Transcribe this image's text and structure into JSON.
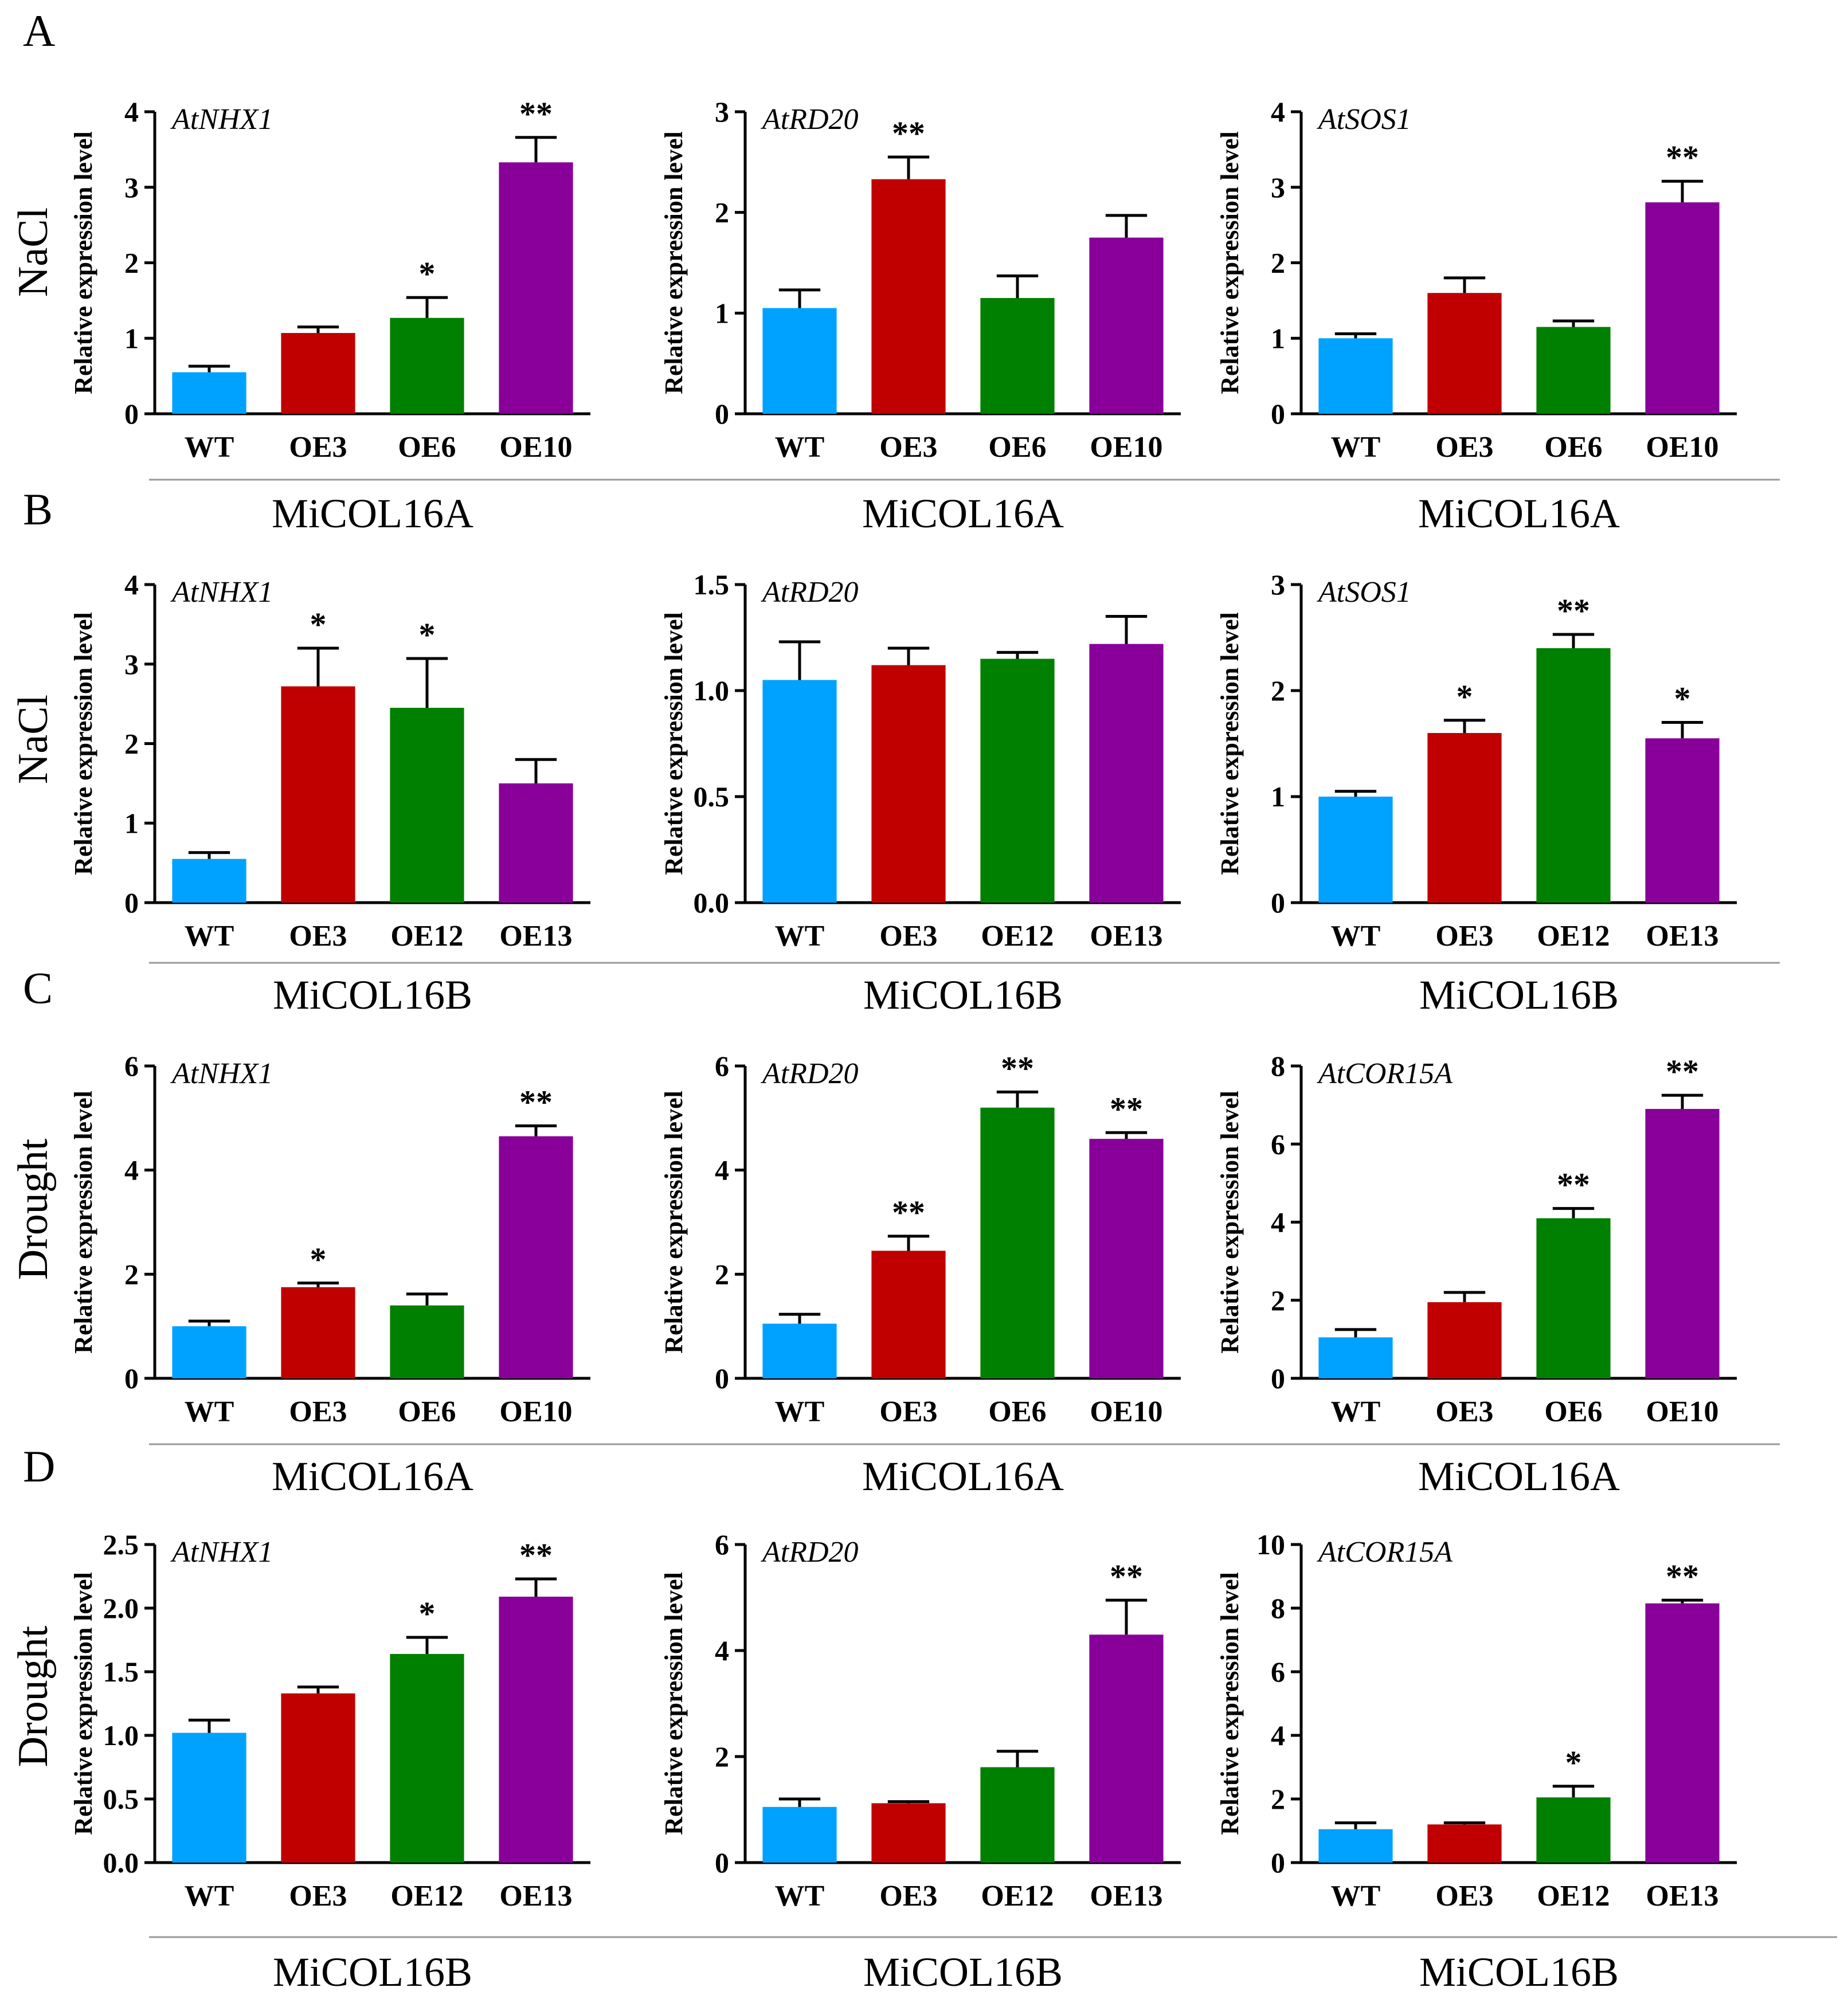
{
  "colors": {
    "WT": "#00A2FF",
    "OE3": "#C00000",
    "OE6": "#008000",
    "OE12": "#008000",
    "OE10": "#880099",
    "OE13": "#880099"
  },
  "ylabel": "Relative expression level",
  "rows": [
    {
      "label": "A",
      "condition": "NaCl"
    },
    {
      "label": "B",
      "condition": "NaCl"
    },
    {
      "label": "C",
      "condition": "Drought"
    },
    {
      "label": "D",
      "condition": "Drought"
    }
  ],
  "chart_data": [
    {
      "type": "bar",
      "gene": "AtNHX1",
      "group": "MiCOL16A",
      "categories": [
        "WT",
        "OE3",
        "OE6",
        "OE10"
      ],
      "values": [
        0.55,
        1.07,
        1.27,
        3.33
      ],
      "errors": [
        0.08,
        0.08,
        0.27,
        0.33
      ],
      "sig": [
        "",
        "",
        "*",
        "**"
      ],
      "ylim": [
        0,
        4
      ],
      "ticks": [
        "0",
        "1",
        "2",
        "3",
        "4"
      ]
    },
    {
      "type": "bar",
      "gene": "AtRD20",
      "group": "MiCOL16A",
      "categories": [
        "WT",
        "OE3",
        "OE6",
        "OE10"
      ],
      "values": [
        1.05,
        2.33,
        1.15,
        1.75
      ],
      "errors": [
        0.18,
        0.22,
        0.22,
        0.22
      ],
      "sig": [
        "",
        "**",
        "",
        ""
      ],
      "ylim": [
        0,
        3
      ],
      "ticks": [
        "0",
        "1",
        "2",
        "3"
      ]
    },
    {
      "type": "bar",
      "gene": "AtSOS1",
      "group": "MiCOL16A",
      "categories": [
        "WT",
        "OE3",
        "OE6",
        "OE10"
      ],
      "values": [
        1.0,
        1.6,
        1.15,
        2.8
      ],
      "errors": [
        0.06,
        0.2,
        0.08,
        0.28
      ],
      "sig": [
        "",
        "",
        "",
        "**"
      ],
      "ylim": [
        0,
        4
      ],
      "ticks": [
        "0",
        "1",
        "2",
        "3",
        "4"
      ]
    },
    {
      "type": "bar",
      "gene": "AtNHX1",
      "group": "MiCOL16B",
      "categories": [
        "WT",
        "OE3",
        "OE12",
        "OE13"
      ],
      "values": [
        0.55,
        2.72,
        2.45,
        1.5
      ],
      "errors": [
        0.08,
        0.48,
        0.62,
        0.3
      ],
      "sig": [
        "",
        "*",
        "*",
        ""
      ],
      "ylim": [
        0,
        4
      ],
      "ticks": [
        "0",
        "1",
        "2",
        "3",
        "4"
      ]
    },
    {
      "type": "bar",
      "gene": "AtRD20",
      "group": "MiCOL16B",
      "categories": [
        "WT",
        "OE3",
        "OE12",
        "OE13"
      ],
      "values": [
        1.05,
        1.12,
        1.15,
        1.22
      ],
      "errors": [
        0.18,
        0.08,
        0.03,
        0.13
      ],
      "sig": [
        "",
        "",
        "",
        ""
      ],
      "ylim": [
        0,
        1.5
      ],
      "ticks": [
        "0.0",
        "0.5",
        "1.0",
        "1.5"
      ]
    },
    {
      "type": "bar",
      "gene": "AtSOS1",
      "group": "MiCOL16B",
      "categories": [
        "WT",
        "OE3",
        "OE12",
        "OE13"
      ],
      "values": [
        1.0,
        1.6,
        2.4,
        1.55
      ],
      "errors": [
        0.05,
        0.12,
        0.13,
        0.15
      ],
      "sig": [
        "",
        "*",
        "**",
        "*"
      ],
      "ylim": [
        0,
        3
      ],
      "ticks": [
        "0",
        "1",
        "2",
        "3"
      ]
    },
    {
      "type": "bar",
      "gene": "AtNHX1",
      "group": "MiCOL16A",
      "categories": [
        "WT",
        "OE3",
        "OE6",
        "OE10"
      ],
      "values": [
        1.0,
        1.75,
        1.4,
        4.65
      ],
      "errors": [
        0.1,
        0.08,
        0.22,
        0.2
      ],
      "sig": [
        "",
        "*",
        "",
        "**"
      ],
      "ylim": [
        0,
        6
      ],
      "ticks": [
        "0",
        "2",
        "4",
        "6"
      ]
    },
    {
      "type": "bar",
      "gene": "AtRD20",
      "group": "MiCOL16A",
      "categories": [
        "WT",
        "OE3",
        "OE6",
        "OE10"
      ],
      "values": [
        1.05,
        2.45,
        5.2,
        4.6
      ],
      "errors": [
        0.18,
        0.28,
        0.3,
        0.12
      ],
      "sig": [
        "",
        "**",
        "**",
        "**"
      ],
      "ylim": [
        0,
        6
      ],
      "ticks": [
        "0",
        "2",
        "4",
        "6"
      ]
    },
    {
      "type": "bar",
      "gene": "AtCOR15A",
      "group": "MiCOL16A",
      "categories": [
        "WT",
        "OE3",
        "OE6",
        "OE10"
      ],
      "values": [
        1.05,
        1.95,
        4.1,
        6.9
      ],
      "errors": [
        0.2,
        0.25,
        0.25,
        0.35
      ],
      "sig": [
        "",
        "",
        "**",
        "**"
      ],
      "ylim": [
        0,
        8
      ],
      "ticks": [
        "0",
        "2",
        "4",
        "6",
        "8"
      ]
    },
    {
      "type": "bar",
      "gene": "AtNHX1",
      "group": "MiCOL16B",
      "categories": [
        "WT",
        "OE3",
        "OE12",
        "OE13"
      ],
      "values": [
        1.02,
        1.33,
        1.64,
        2.09
      ],
      "errors": [
        0.1,
        0.05,
        0.13,
        0.14
      ],
      "sig": [
        "",
        "",
        "*",
        "**"
      ],
      "ylim": [
        0,
        2.5
      ],
      "ticks": [
        "0.0",
        "0.5",
        "1.0",
        "1.5",
        "2.0",
        "2.5"
      ]
    },
    {
      "type": "bar",
      "gene": "AtRD20",
      "group": "MiCOL16B",
      "categories": [
        "WT",
        "OE3",
        "OE12",
        "OE13"
      ],
      "values": [
        1.05,
        1.12,
        1.8,
        4.3
      ],
      "errors": [
        0.15,
        0.03,
        0.3,
        0.65
      ],
      "sig": [
        "",
        "",
        "",
        "**"
      ],
      "ylim": [
        0,
        6
      ],
      "ticks": [
        "0",
        "2",
        "4",
        "6"
      ]
    },
    {
      "type": "bar",
      "gene": "AtCOR15A",
      "group": "MiCOL16B",
      "categories": [
        "WT",
        "OE3",
        "OE12",
        "OE13"
      ],
      "values": [
        1.05,
        1.2,
        2.05,
        8.15
      ],
      "errors": [
        0.2,
        0.05,
        0.35,
        0.1
      ],
      "sig": [
        "",
        "",
        "*",
        "**"
      ],
      "ylim": [
        0,
        10
      ],
      "ticks": [
        "0",
        "2",
        "4",
        "6",
        "8",
        "10"
      ]
    }
  ]
}
